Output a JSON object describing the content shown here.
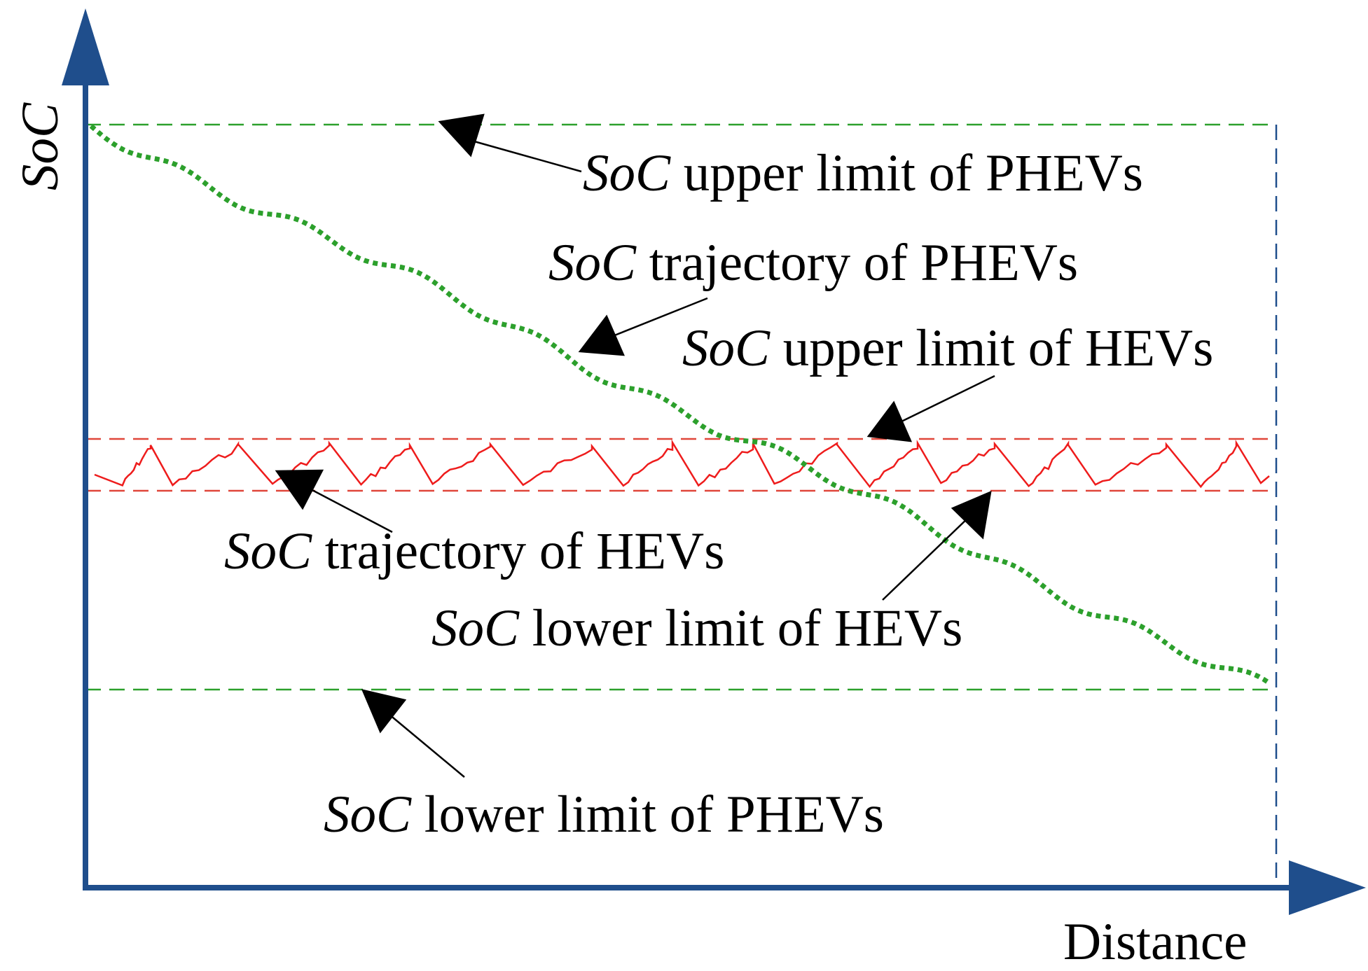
{
  "axes": {
    "x_label": "Distance",
    "y_label": "SoC"
  },
  "colors": {
    "axis": "#1f4e8c",
    "phev": "#2ca02c",
    "hev": "#ee1c1c",
    "hev_limit": "#e0463a",
    "annotation": "#000000",
    "frame": "#1f4e8c"
  },
  "annotations": {
    "phev_upper": {
      "prefix": "SoC",
      "rest": " upper limit of PHEVs"
    },
    "phev_trajectory": {
      "prefix": "SoC",
      "rest": " trajectory of PHEVs"
    },
    "hev_upper": {
      "prefix": "SoC",
      "rest": " upper limit of HEVs"
    },
    "hev_trajectory": {
      "prefix": "SoC",
      "rest": " trajectory of HEVs"
    },
    "hev_lower": {
      "prefix": "SoC",
      "rest": " lower limit of HEVs"
    },
    "phev_lower": {
      "prefix": "SoC",
      "rest": " lower limit of PHEVs"
    }
  }
}
